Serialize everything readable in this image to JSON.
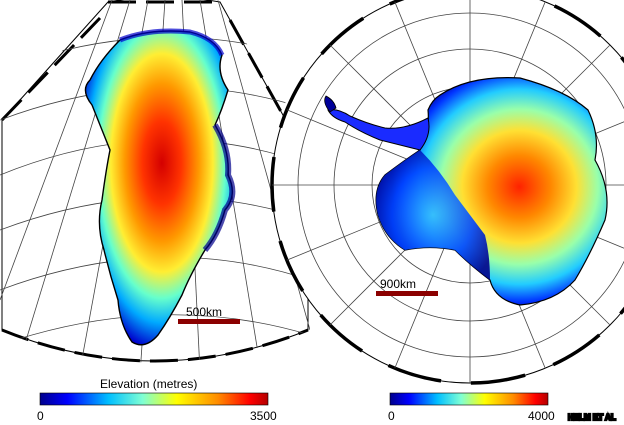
{
  "left_map": {
    "scale_label": "500km",
    "legend_title": "Elevation (metres)",
    "legend_min": "0",
    "legend_max": "3500"
  },
  "right_map": {
    "scale_label": "900km",
    "legend_min": "0",
    "legend_max": "4000"
  },
  "credit": "HELM ET AL",
  "colors": {
    "ramp": [
      "#00008b",
      "#0000ff",
      "#00bfff",
      "#7fffd4",
      "#ffff00",
      "#ff8c00",
      "#ff0000",
      "#b30000"
    ],
    "scale_bar": "#8b0000",
    "coastline": "#000000",
    "graticule": "#333333"
  }
}
